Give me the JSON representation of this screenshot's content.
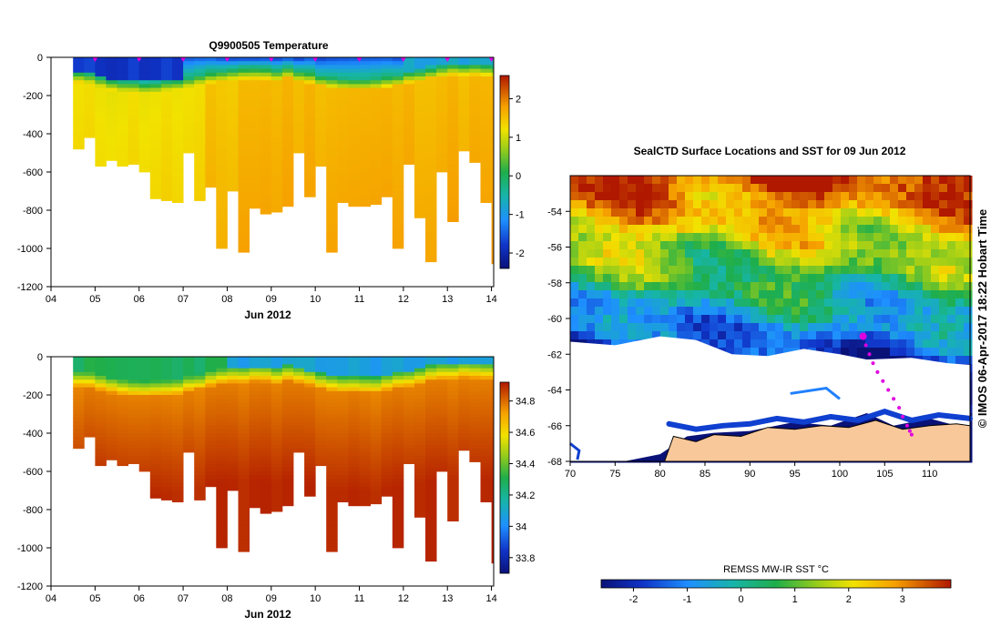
{
  "chart_data": [
    {
      "type": "heatmap",
      "title": "Q9900505  Temperature",
      "xlabel": "Jun 2012",
      "ylabel": "",
      "x_ticks": [
        "04",
        "05",
        "06",
        "07",
        "08",
        "09",
        "10",
        "11",
        "12",
        "13",
        "14"
      ],
      "y_ticks": [
        "0",
        "-200",
        "-400",
        "-600",
        "-800",
        "-1000",
        "-1200"
      ],
      "ylim": [
        -1200,
        0
      ],
      "xlim": [
        4,
        14.05
      ],
      "colorbar": {
        "min": -2.4,
        "max": 2.6,
        "ticks": [
          "2",
          "1",
          "0",
          "-1",
          "-2"
        ]
      },
      "surface_markers_x": [
        5.0,
        6.0,
        7.0,
        8.0,
        9.0,
        10.0,
        11.0,
        12.0,
        13.0,
        14.0
      ],
      "profiles": [
        {
          "t": 4.5,
          "d": 480
        },
        {
          "t": 4.75,
          "d": 420
        },
        {
          "t": 5.0,
          "d": 570
        },
        {
          "t": 5.25,
          "d": 540
        },
        {
          "t": 5.5,
          "d": 570
        },
        {
          "t": 5.75,
          "d": 560
        },
        {
          "t": 6.0,
          "d": 600
        },
        {
          "t": 6.25,
          "d": 740
        },
        {
          "t": 6.5,
          "d": 750
        },
        {
          "t": 6.75,
          "d": 760
        },
        {
          "t": 7.0,
          "d": 500
        },
        {
          "t": 7.25,
          "d": 750
        },
        {
          "t": 7.5,
          "d": 680
        },
        {
          "t": 7.75,
          "d": 1000
        },
        {
          "t": 8.0,
          "d": 700
        },
        {
          "t": 8.25,
          "d": 1020
        },
        {
          "t": 8.5,
          "d": 790
        },
        {
          "t": 8.75,
          "d": 820
        },
        {
          "t": 9.0,
          "d": 810
        },
        {
          "t": 9.25,
          "d": 780
        },
        {
          "t": 9.5,
          "d": 500
        },
        {
          "t": 9.75,
          "d": 730
        },
        {
          "t": 10.0,
          "d": 570
        },
        {
          "t": 10.25,
          "d": 1020
        },
        {
          "t": 10.5,
          "d": 760
        },
        {
          "t": 10.75,
          "d": 780
        },
        {
          "t": 11.0,
          "d": 780
        },
        {
          "t": 11.25,
          "d": 770
        },
        {
          "t": 11.5,
          "d": 730
        },
        {
          "t": 11.75,
          "d": 1000
        },
        {
          "t": 12.0,
          "d": 560
        },
        {
          "t": 12.25,
          "d": 840
        },
        {
          "t": 12.5,
          "d": 1070
        },
        {
          "t": 12.75,
          "d": 600
        },
        {
          "t": 13.0,
          "d": 860
        },
        {
          "t": 13.25,
          "d": 490
        },
        {
          "t": 13.5,
          "d": 550
        },
        {
          "t": 13.75,
          "d": 760
        },
        {
          "t": 14.0,
          "d": 1080
        }
      ]
    },
    {
      "type": "heatmap",
      "title": "",
      "xlabel": "Jun 2012",
      "ylabel": "",
      "x_ticks": [
        "04",
        "05",
        "06",
        "07",
        "08",
        "09",
        "10",
        "11",
        "12",
        "13",
        "14"
      ],
      "y_ticks": [
        "0",
        "-200",
        "-400",
        "-600",
        "-800",
        "-1000",
        "-1200"
      ],
      "ylim": [
        -1200,
        0
      ],
      "xlim": [
        4,
        14.05
      ],
      "colorbar": {
        "min": 33.7,
        "max": 34.92,
        "ticks": [
          "34.8",
          "34.6",
          "34.4",
          "34.2",
          "34",
          "33.8"
        ]
      }
    },
    {
      "type": "heatmap",
      "title": "SealCTD Surface Locations and SST for 09 Jun 2012",
      "xlabel": "",
      "ylabel": "",
      "x_ticks": [
        "70",
        "75",
        "80",
        "85",
        "90",
        "95",
        "100",
        "105",
        "110"
      ],
      "y_ticks": [
        "-54",
        "-56",
        "-58",
        "-60",
        "-62",
        "-64",
        "-66",
        "-68"
      ],
      "xlim": [
        70,
        114.5
      ],
      "ylim": [
        -68,
        -52
      ],
      "side_label": "© IMOS 06-Apr-2017 18:22 Hobart Time",
      "colorbar": {
        "label": "REMSS MW-IR SST °C",
        "min": -2.6,
        "max": 3.9,
        "ticks": [
          "-2",
          "-1",
          "0",
          "1",
          "2",
          "3"
        ]
      },
      "track": [
        {
          "lon": 102.6,
          "lat": -61.0
        },
        {
          "lon": 102.9,
          "lat": -61.5
        },
        {
          "lon": 103.3,
          "lat": -62.0
        },
        {
          "lon": 103.7,
          "lat": -62.5
        },
        {
          "lon": 104.2,
          "lat": -63.0
        },
        {
          "lon": 104.8,
          "lat": -63.5
        },
        {
          "lon": 105.4,
          "lat": -64.0
        },
        {
          "lon": 106.0,
          "lat": -64.5
        },
        {
          "lon": 106.6,
          "lat": -65.0
        },
        {
          "lon": 107.0,
          "lat": -65.5
        },
        {
          "lon": 107.5,
          "lat": -66.0
        },
        {
          "lon": 107.8,
          "lat": -66.3
        },
        {
          "lon": 108.0,
          "lat": -66.5
        }
      ]
    }
  ]
}
